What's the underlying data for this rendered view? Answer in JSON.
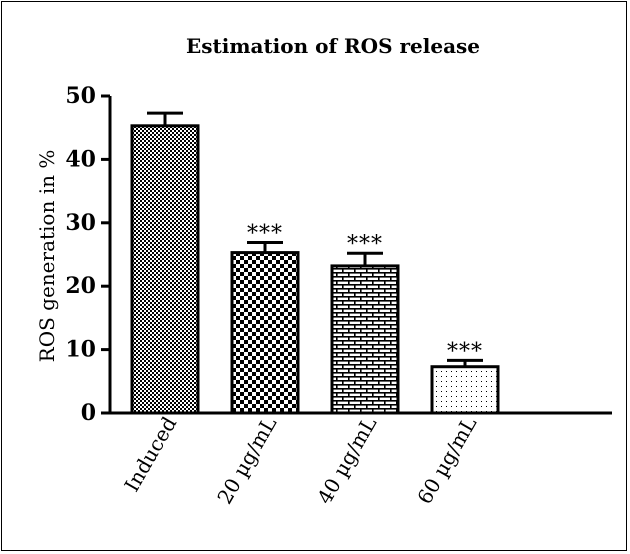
{
  "chart_data": {
    "type": "bar",
    "title": "Estimation of ROS release",
    "xlabel": "",
    "ylabel": "ROS generation in %",
    "ylim": [
      0,
      50
    ],
    "yticks": [
      0,
      10,
      20,
      30,
      40,
      50
    ],
    "categories": [
      "Induced",
      "20 µg/mL",
      "40 µg/mL",
      "60 µg/mL"
    ],
    "values": [
      45.3,
      25.3,
      23.2,
      7.3
    ],
    "errors": [
      2.0,
      1.6,
      2.0,
      1.0
    ],
    "annotations": [
      "",
      "***",
      "***",
      "***"
    ],
    "patterns": [
      "fine-checker",
      "checker",
      "brick",
      "dots"
    ],
    "grid": false,
    "legend": "none",
    "bar_color": "#000000"
  }
}
